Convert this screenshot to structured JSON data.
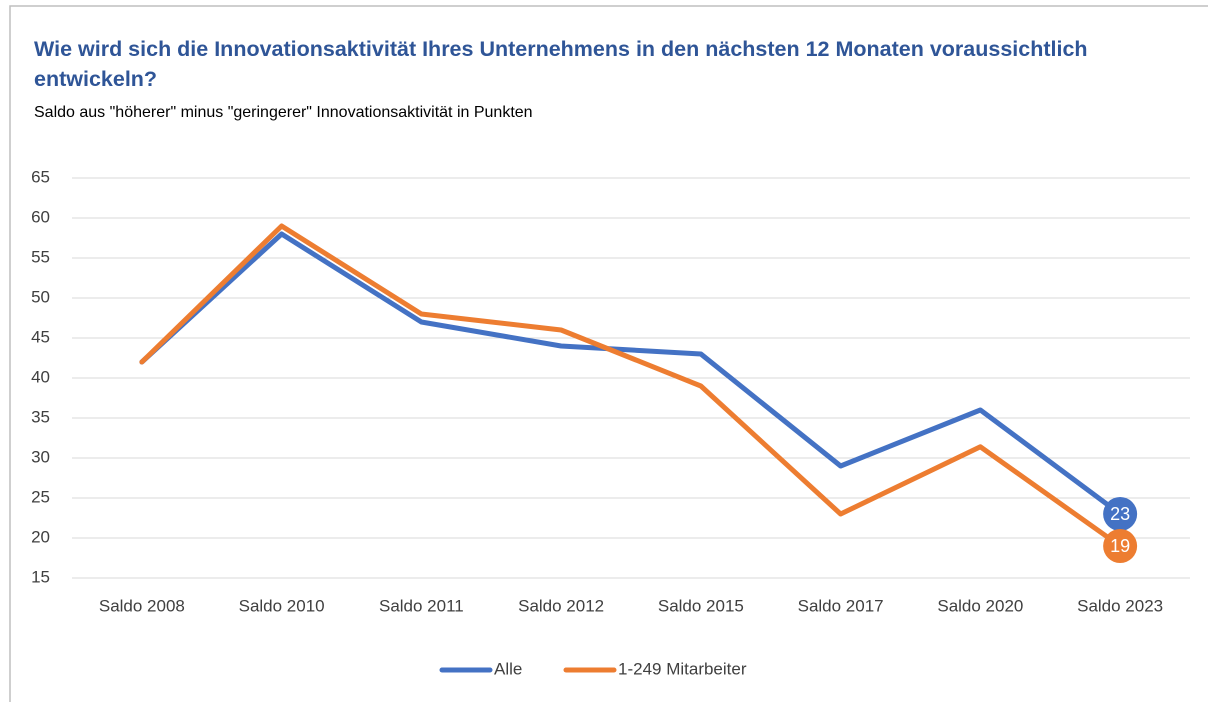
{
  "chart_data": {
    "type": "line",
    "title": "Wie wird sich die Innovationsaktivität Ihres Unternehmens in den nächsten 12 Monaten voraussichtlich entwickeln?",
    "subtitle": "Saldo aus \"höherer\" minus \"geringerer\" Innovationsaktivität in Punkten",
    "categories": [
      "Saldo 2008",
      "Saldo 2010",
      "Saldo 2011",
      "Saldo 2012",
      "Saldo 2015",
      "Saldo 2017",
      "Saldo 2020",
      "Saldo 2023"
    ],
    "series": [
      {
        "name": "Alle",
        "color": "#4472c4",
        "values": [
          42,
          58,
          47,
          44,
          43,
          29,
          36,
          23
        ]
      },
      {
        "name": "1-249 Mitarbeiter",
        "color": "#ed7d31",
        "values": [
          42,
          59,
          48,
          46,
          39,
          23,
          31.4,
          19
        ]
      }
    ],
    "ylim": [
      15,
      65
    ],
    "yticks": [
      15,
      20,
      25,
      30,
      35,
      40,
      45,
      50,
      55,
      60,
      65
    ],
    "grid": true,
    "legend": "bottom"
  }
}
